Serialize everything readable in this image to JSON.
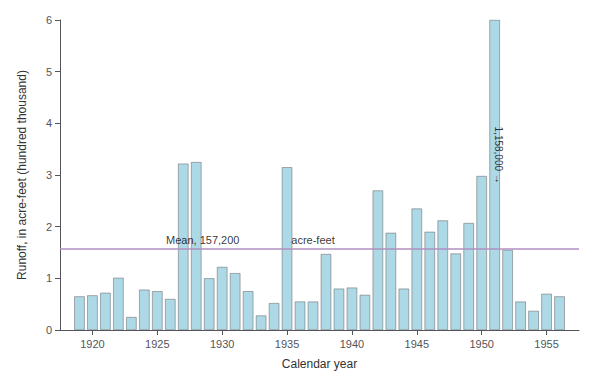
{
  "chart_data": {
    "type": "bar",
    "x": [
      1919,
      1920,
      1921,
      1922,
      1923,
      1924,
      1925,
      1926,
      1927,
      1928,
      1929,
      1930,
      1931,
      1932,
      1933,
      1934,
      1935,
      1936,
      1937,
      1938,
      1939,
      1940,
      1941,
      1942,
      1943,
      1944,
      1945,
      1946,
      1947,
      1948,
      1949,
      1950,
      1951,
      1952,
      1953,
      1954,
      1955,
      1956
    ],
    "values": [
      0.65,
      0.67,
      0.72,
      1.01,
      0.25,
      0.78,
      0.75,
      0.6,
      3.22,
      3.25,
      1.0,
      1.22,
      1.1,
      0.75,
      0.28,
      0.52,
      3.15,
      0.55,
      0.55,
      1.47,
      0.8,
      0.82,
      0.68,
      2.7,
      1.88,
      0.8,
      2.35,
      1.9,
      2.12,
      1.48,
      2.07,
      2.98,
      6.0,
      1.55,
      0.55,
      0.37,
      0.7,
      0.65
    ],
    "color": "#add8e6",
    "xlabel": "Calendar year",
    "ylabel": "Runoff, in acre-feet (hundred thousand)",
    "xlim": [
      1917.5,
      1957.5
    ],
    "ylim": [
      0,
      6
    ],
    "xticks": [
      1920,
      1925,
      1930,
      1935,
      1940,
      1945,
      1950,
      1955
    ],
    "yticks": [
      0,
      1,
      2,
      3,
      4,
      5,
      6
    ],
    "grid": false,
    "mean_line": {
      "value": 1.572,
      "color": "#b090c0",
      "labels": [
        {
          "text": "Mean, 157,200",
          "x": 1928.5
        },
        {
          "text": "acre-feet",
          "x": 1937.0
        }
      ]
    },
    "annotations": [
      {
        "text": "1,158,000 →",
        "x": 1951,
        "y": 3.5
      }
    ]
  }
}
